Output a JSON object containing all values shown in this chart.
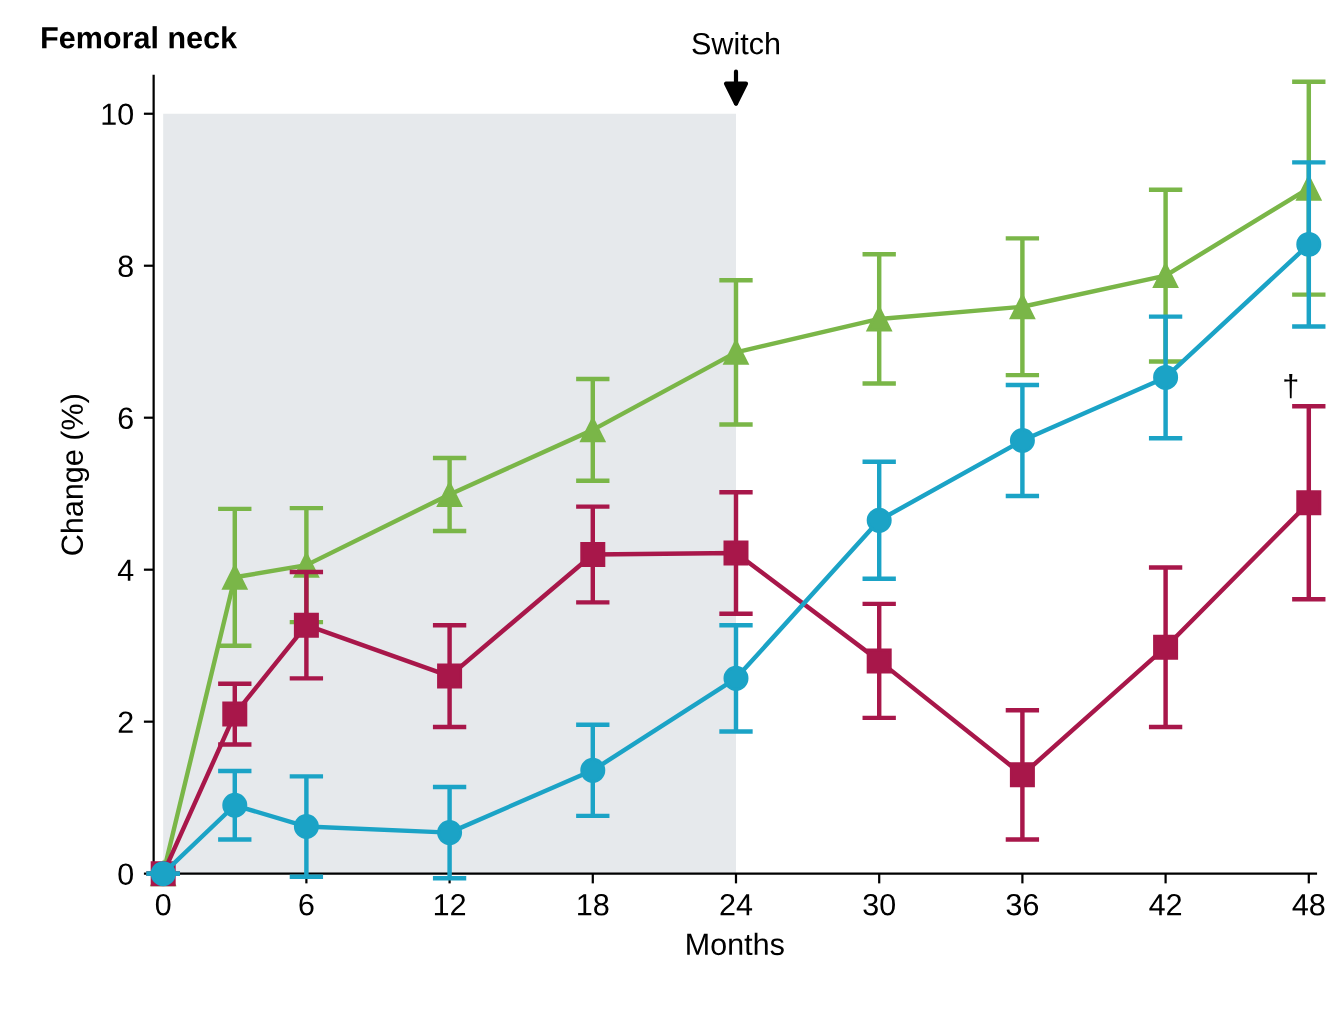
{
  "chart_data": {
    "type": "line",
    "title": "Femoral neck",
    "xlabel": "Months",
    "ylabel": "Change (%)",
    "xlim": [
      -0.4,
      48.3
    ],
    "xticks": [
      0,
      6,
      12,
      18,
      24,
      30,
      36,
      42,
      48
    ],
    "ylim": [
      0,
      10.5
    ],
    "yticks": [
      0,
      2,
      4,
      6,
      8,
      10
    ],
    "grid": false,
    "legend": false,
    "bands": [
      {
        "axis": "x",
        "from": 0,
        "to": 24,
        "color": "#e6e9ec"
      }
    ],
    "annotations": [
      {
        "text": "Switch",
        "x": 24,
        "y": 10
      },
      {
        "text": "†",
        "x": 48,
        "y": 6.2
      }
    ],
    "series": [
      {
        "color": "#7ab648",
        "marker": "triangle",
        "x": [
          0,
          3,
          6,
          12,
          18,
          24,
          30,
          36,
          42,
          48
        ],
        "values": [
          0,
          3.9,
          4.06,
          4.99,
          5.84,
          6.86,
          7.3,
          7.46,
          7.87,
          9.02
        ],
        "errors": [
          null,
          0.9,
          0.75,
          0.48,
          0.67,
          0.95,
          0.85,
          0.9,
          1.13,
          1.4
        ]
      },
      {
        "color": "#a8174a",
        "marker": "square",
        "x": [
          0,
          3,
          6,
          12,
          18,
          24,
          30,
          36,
          42,
          48
        ],
        "values": [
          0,
          2.1,
          3.27,
          2.6,
          4.2,
          4.22,
          2.8,
          1.3,
          2.98,
          4.88
        ],
        "errors": [
          null,
          0.4,
          0.7,
          0.67,
          0.63,
          0.8,
          0.75,
          0.85,
          1.05,
          1.27
        ]
      },
      {
        "color": "#1ba3c6",
        "marker": "circle",
        "x": [
          0,
          3,
          6,
          12,
          18,
          24,
          30,
          36,
          42,
          48
        ],
        "values": [
          0,
          0.9,
          0.62,
          0.54,
          1.36,
          2.57,
          4.65,
          5.7,
          6.53,
          8.28
        ],
        "errors": [
          null,
          0.45,
          0.66,
          0.6,
          0.6,
          0.7,
          0.77,
          0.73,
          0.8,
          1.08
        ]
      }
    ]
  }
}
